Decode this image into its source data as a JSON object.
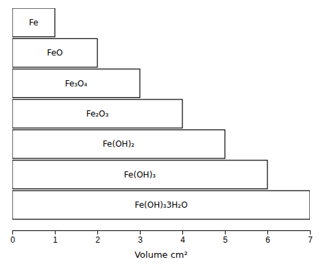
{
  "chart_data": {
    "type": "bar",
    "orientation": "horizontal",
    "categories": [
      "Fe",
      "FeO",
      "Fe₃O₄",
      "Fe₂O₃",
      "Fe(OH)₂",
      "Fe(OH)₃",
      "Fe(OH)₃3H₂O"
    ],
    "values": [
      1.0,
      2.0,
      3.0,
      4.0,
      5.0,
      6.0,
      7.0
    ],
    "color": "#ffffff",
    "x_label": "Volume cm²",
    "xlim": [
      0,
      7
    ],
    "xticks": [
      0,
      1,
      2,
      3,
      4,
      5,
      6,
      7
    ],
    "grid": false
  }
}
